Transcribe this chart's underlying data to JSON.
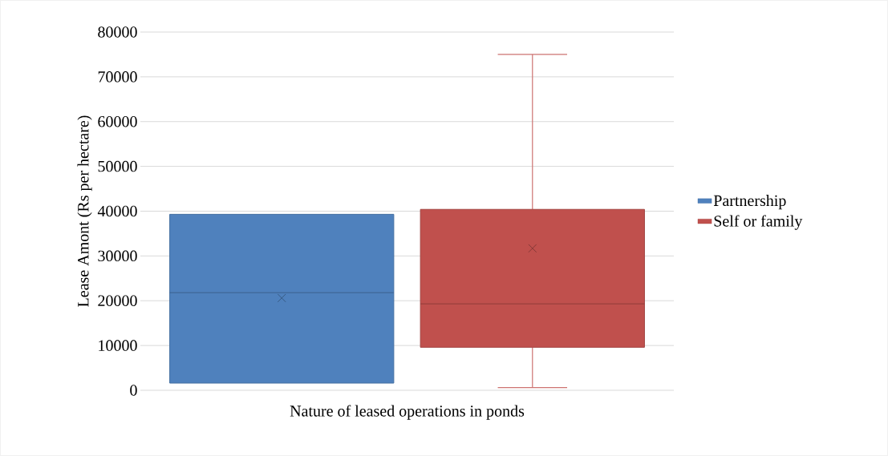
{
  "chart_data": {
    "type": "box",
    "xlabel": "Nature of leased operations in ponds",
    "ylabel": "Lease Amont (Rs per hectare)",
    "categories": [
      null
    ],
    "series": [
      {
        "name": "Partnership",
        "color": "#4f81bd",
        "boxes": [
          {
            "low": 1600,
            "q1": 1600,
            "median": 21800,
            "q3": 39300,
            "high": 39300,
            "mean": 20600
          }
        ]
      },
      {
        "name": "Self or family",
        "color": "#c0504d",
        "boxes": [
          {
            "low": 600,
            "q1": 9600,
            "median": 19300,
            "q3": 40400,
            "high": 75000,
            "mean": 31700
          }
        ]
      }
    ],
    "ylim": [
      0,
      80000
    ],
    "yticks": [
      0,
      10000,
      20000,
      30000,
      40000,
      50000,
      60000,
      70000,
      80000
    ],
    "grid": "y",
    "legend": "right",
    "tick_labels": "y"
  }
}
